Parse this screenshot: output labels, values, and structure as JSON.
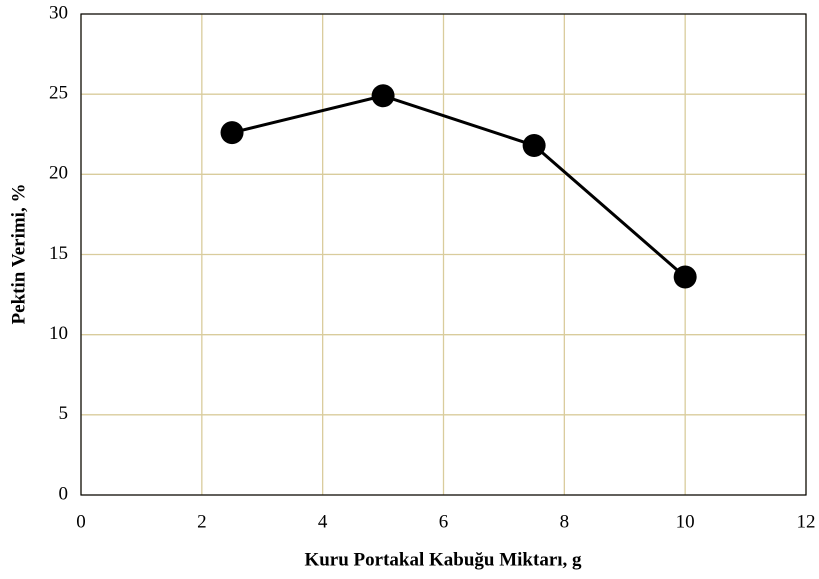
{
  "chart_data": {
    "type": "line",
    "xlabel": "Kuru Portakal Kabuğu Miktarı, g",
    "ylabel": "Pektin Verimi, %",
    "x": [
      2.5,
      5,
      7.5,
      10
    ],
    "values": [
      22.6,
      24.9,
      21.8,
      13.6
    ],
    "color": "#000000",
    "xlim": [
      0,
      12
    ],
    "xticks": [
      0,
      2,
      4,
      6,
      8,
      10,
      12
    ],
    "ylim": [
      0,
      30
    ],
    "yticks": [
      0,
      5,
      10,
      15,
      20,
      25,
      30
    ],
    "grid": true,
    "grid_color": "#d9cc9c"
  }
}
